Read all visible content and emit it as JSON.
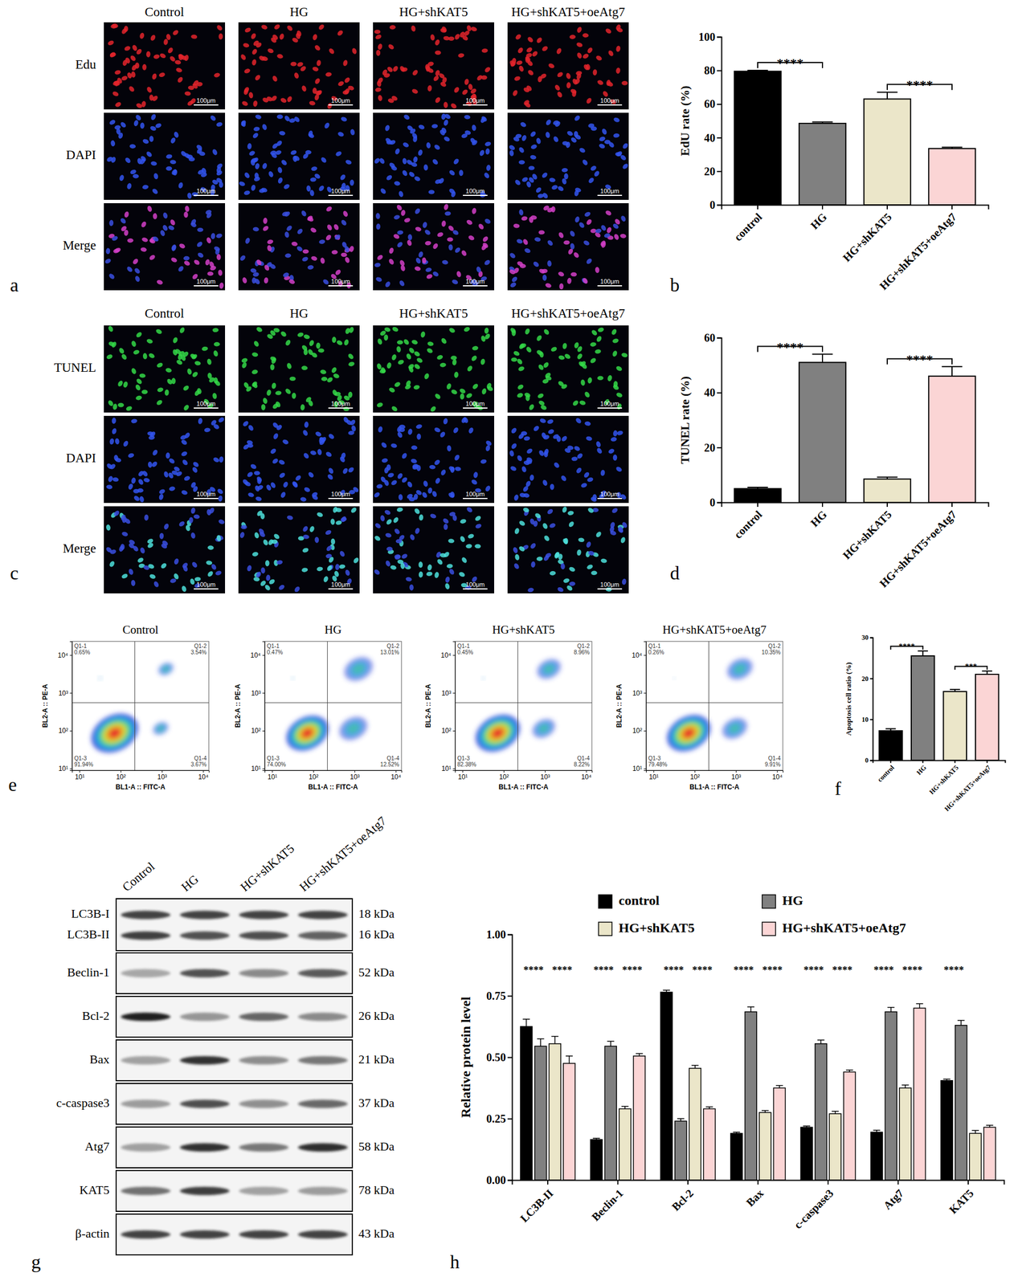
{
  "panel_labels": [
    "a",
    "b",
    "c",
    "d",
    "e",
    "f",
    "g",
    "h"
  ],
  "micrographs": [
    {
      "columns": [
        "Control",
        "HG",
        "HG+shKAT5",
        "HG+shKAT5+oeAtg7"
      ],
      "rows": [
        "Edu",
        "DAPI",
        "Merge"
      ],
      "scale_bar": "100μm"
    },
    {
      "columns": [
        "Control",
        "HG",
        "HG+shKAT5",
        "HG+shKAT5+oeAtg7"
      ],
      "rows": [
        "TUNEL",
        "DAPI",
        "Merge"
      ],
      "scale_bar": "100μm"
    }
  ],
  "chart_data": [
    {
      "type": "bar",
      "y_label": "EdU rate (%)",
      "categories": [
        "control",
        "HG",
        "HG+shKAT5",
        "HG+shKAT5+oeAtg7"
      ],
      "values": [
        79.5,
        48.5,
        63,
        33.5
      ],
      "errors": [
        0.6,
        0.8,
        4,
        0.8
      ],
      "colors": [
        "#000000",
        "#808080",
        "#ebe6c9",
        "#fbd5d5"
      ],
      "ylim": [
        0,
        100
      ],
      "yticks": [
        0,
        20,
        40,
        60,
        80,
        100
      ],
      "significance": [
        {
          "between": [
            "control",
            "HG"
          ],
          "label": "****"
        },
        {
          "between": [
            "HG+shKAT5",
            "HG+shKAT5+oeAtg7"
          ],
          "label": "****"
        }
      ]
    },
    {
      "type": "bar",
      "y_label": "TUNEL rate (%)",
      "categories": [
        "control",
        "HG",
        "HG+shKAT5",
        "HG+shKAT5+oeAtg7"
      ],
      "values": [
        5,
        51,
        8.5,
        46
      ],
      "errors": [
        0.5,
        3,
        0.7,
        3.5
      ],
      "colors": [
        "#000000",
        "#808080",
        "#ebe6c9",
        "#fbd5d5"
      ],
      "ylim": [
        0,
        60
      ],
      "yticks": [
        0,
        20,
        40,
        60
      ],
      "significance": [
        {
          "between": [
            "control",
            "HG"
          ],
          "label": "****"
        },
        {
          "between": [
            "HG+shKAT5",
            "HG+shKAT5+oeAtg7"
          ],
          "label": "****"
        }
      ]
    },
    {
      "type": "bar",
      "y_label": "Apoptosis cell ratio (%)",
      "categories": [
        "control",
        "HG",
        "HG+shKAT5",
        "HG+shKAT5+oeAtg7"
      ],
      "values": [
        7.2,
        25.5,
        16.8,
        21
      ],
      "errors": [
        0.5,
        1.2,
        0.5,
        0.8
      ],
      "colors": [
        "#000000",
        "#808080",
        "#ebe6c9",
        "#fbd5d5"
      ],
      "ylim": [
        0,
        30
      ],
      "yticks": [
        0,
        10,
        20,
        30
      ],
      "significance": [
        {
          "between": [
            "control",
            "HG"
          ],
          "label": "****"
        },
        {
          "between": [
            "HG+shKAT5",
            "HG+shKAT5+oeAtg7"
          ],
          "label": "***"
        }
      ]
    },
    {
      "type": "bar",
      "y_label": "Relative protein level",
      "legend": "top",
      "categories": [
        "LC3B-II",
        "Beclin-1",
        "Bcl-2",
        "Bax",
        "c-caspase3",
        "Atg7",
        "KAT5"
      ],
      "series": [
        {
          "name": "control",
          "color": "#000000",
          "values": [
            0.625,
            0.165,
            0.765,
            0.19,
            0.215,
            0.195,
            0.405
          ],
          "errors": [
            0.03,
            0.005,
            0.008,
            0.005,
            0.005,
            0.008,
            0.006
          ]
        },
        {
          "name": "HG",
          "color": "#808080",
          "values": [
            0.545,
            0.545,
            0.24,
            0.685,
            0.555,
            0.685,
            0.63
          ],
          "errors": [
            0.03,
            0.02,
            0.01,
            0.02,
            0.015,
            0.018,
            0.02
          ]
        },
        {
          "name": "HG+shKAT5",
          "color": "#ebe6c9",
          "values": [
            0.555,
            0.29,
            0.455,
            0.275,
            0.27,
            0.375,
            0.19
          ],
          "errors": [
            0.03,
            0.01,
            0.012,
            0.008,
            0.01,
            0.012,
            0.012
          ]
        },
        {
          "name": "HG+shKAT5+oeAtg7",
          "color": "#fbd5d5",
          "values": [
            0.475,
            0.505,
            0.29,
            0.375,
            0.44,
            0.7,
            0.215
          ],
          "errors": [
            0.03,
            0.01,
            0.008,
            0.01,
            0.008,
            0.018,
            0.008
          ]
        }
      ],
      "ylim": [
        0,
        1
      ],
      "yticks": [
        {
          "value": 0,
          "label": "0.00"
        },
        {
          "value": 0.25,
          "label": "0.25"
        },
        {
          "value": 0.5,
          "label": "0.50"
        },
        {
          "value": 0.75,
          "label": "0.75"
        },
        {
          "value": 1,
          "label": "1.00"
        }
      ],
      "significance": [
        {
          "category": "LC3B-II",
          "between": [
            "control",
            "HG"
          ],
          "label": "****"
        },
        {
          "category": "LC3B-II",
          "between": [
            "HG+shKAT5",
            "HG+shKAT5+oeAtg7"
          ],
          "label": "****"
        },
        {
          "category": "Beclin-1",
          "between": [
            "control",
            "HG"
          ],
          "label": "****"
        },
        {
          "category": "Beclin-1",
          "between": [
            "HG+shKAT5",
            "HG+shKAT5+oeAtg7"
          ],
          "label": "****"
        },
        {
          "category": "Bcl-2",
          "between": [
            "control",
            "HG"
          ],
          "label": "****"
        },
        {
          "category": "Bcl-2",
          "between": [
            "HG+shKAT5",
            "HG+shKAT5+oeAtg7"
          ],
          "label": "****"
        },
        {
          "category": "Bax",
          "between": [
            "control",
            "HG"
          ],
          "label": "****"
        },
        {
          "category": "Bax",
          "between": [
            "HG+shKAT5",
            "HG+shKAT5+oeAtg7"
          ],
          "label": "****"
        },
        {
          "category": "c-caspase3",
          "between": [
            "control",
            "HG"
          ],
          "label": "****"
        },
        {
          "category": "c-caspase3",
          "between": [
            "HG+shKAT5",
            "HG+shKAT5+oeAtg7"
          ],
          "label": "****"
        },
        {
          "category": "Atg7",
          "between": [
            "control",
            "HG"
          ],
          "label": "****"
        },
        {
          "category": "Atg7",
          "between": [
            "HG+shKAT5",
            "HG+shKAT5+oeAtg7"
          ],
          "label": "****"
        },
        {
          "category": "KAT5",
          "between": [
            "control",
            "HG"
          ],
          "label": "****"
        }
      ]
    }
  ],
  "flow_cytometry": {
    "type": "scatter",
    "log": true,
    "x_label": "BL1-A :: FITC-A",
    "y_label": "BL2-A :: PE-A",
    "xlim": [
      6.6,
      13800
    ],
    "ylim": [
      9,
      23000
    ],
    "xticks": [
      {
        "value": 10,
        "label": "10¹"
      },
      {
        "value": 100,
        "label": "10²"
      },
      {
        "value": 1000,
        "label": "10³"
      },
      {
        "value": 10000,
        "label": "10⁴"
      }
    ],
    "yticks": [
      {
        "value": 10,
        "label": "10¹"
      },
      {
        "value": 100,
        "label": "10²"
      },
      {
        "value": 1000,
        "label": "10³"
      },
      {
        "value": 10000,
        "label": "10⁴"
      }
    ],
    "gates": {
      "x": 220,
      "y": 550
    },
    "plots": [
      {
        "title": "Control",
        "quadrants": [
          "Q1-1",
          "Q1-2",
          "Q1-3",
          "Q1-4"
        ],
        "values": [
          0.65,
          3.54,
          91.94,
          3.67
        ],
        "value_labels": [
          "0.65%",
          "3.54%",
          "91.94%",
          "3.67%"
        ]
      },
      {
        "title": "HG",
        "quadrants": [
          "Q1-1",
          "Q1-2",
          "Q1-3",
          "Q1-4"
        ],
        "values": [
          0.47,
          13.01,
          74.0,
          12.52
        ],
        "value_labels": [
          "0.47%",
          "13.01%",
          "74.00%",
          "12.52%"
        ]
      },
      {
        "title": "HG+shKAT5",
        "quadrants": [
          "Q1-1",
          "Q1-2",
          "Q1-3",
          "Q1-4"
        ],
        "values": [
          0.45,
          8.96,
          82.38,
          8.22
        ],
        "value_labels": [
          "0.45%",
          "8.96%",
          "82.38%",
          "8.22%"
        ]
      },
      {
        "title": "HG+shKAT5+oeAtg7",
        "quadrants": [
          "Q1-1",
          "Q1-2",
          "Q1-3",
          "Q1-4"
        ],
        "values": [
          0.26,
          10.35,
          79.48,
          9.91
        ],
        "value_labels": [
          "0.26%",
          "10.35%",
          "79.48%",
          "9.91%"
        ]
      }
    ]
  },
  "western_blot": {
    "lanes": [
      "Control",
      "HG",
      "HG+shKAT5",
      "HG+shKAT5+oeAtg7"
    ],
    "rows": [
      {
        "bands": [
          "LC3B-I",
          "LC3B-II"
        ],
        "sizes": [
          "18 kDa",
          "16 kDa"
        ]
      },
      {
        "bands": [
          "Beclin-1"
        ],
        "sizes": [
          "52 kDa"
        ]
      },
      {
        "bands": [
          "Bcl-2"
        ],
        "sizes": [
          "26 kDa"
        ]
      },
      {
        "bands": [
          "Bax"
        ],
        "sizes": [
          "21 kDa"
        ]
      },
      {
        "bands": [
          "c-caspase3"
        ],
        "sizes": [
          "37 kDa"
        ]
      },
      {
        "bands": [
          "Atg7"
        ],
        "sizes": [
          "58 kDa"
        ]
      },
      {
        "bands": [
          "KAT5"
        ],
        "sizes": [
          "78 kDa"
        ]
      },
      {
        "bands": [
          "β-actin"
        ],
        "sizes": [
          "43 kDa"
        ]
      }
    ]
  }
}
